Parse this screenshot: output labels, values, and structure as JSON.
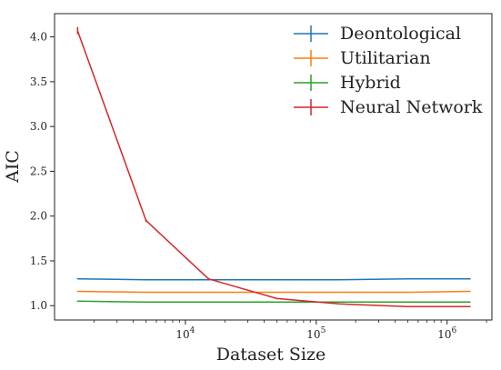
{
  "chart_data": {
    "type": "line",
    "title": "",
    "xlabel": "Dataset Size",
    "ylabel": "AIC",
    "x_scale": "log",
    "xlim": [
      1000,
      2200000
    ],
    "ylim": [
      0.84,
      4.26
    ],
    "x": [
      1500,
      5000,
      15000,
      50000,
      150000,
      500000,
      1500000
    ],
    "x_ticks": [
      {
        "value": 10000,
        "base": "10",
        "exp": "4"
      },
      {
        "value": 100000,
        "base": "10",
        "exp": "5"
      },
      {
        "value": 1000000,
        "base": "10",
        "exp": "6"
      }
    ],
    "y_ticks": [
      1.0,
      1.5,
      2.0,
      2.5,
      3.0,
      3.5,
      4.0
    ],
    "y_tick_labels": [
      "1.0",
      "1.5",
      "2.0",
      "2.5",
      "3.0",
      "3.5",
      "4.0"
    ],
    "grid": false,
    "legend_position": "top-right",
    "series": [
      {
        "name": "Deontological",
        "color": "#1f77b4",
        "values": [
          1.3,
          1.29,
          1.29,
          1.29,
          1.29,
          1.3,
          1.3
        ],
        "error": [
          0.005,
          0.005,
          0.005,
          0.005,
          0.005,
          0.005,
          0.005
        ]
      },
      {
        "name": "Utilitarian",
        "color": "#ff7f0e",
        "values": [
          1.16,
          1.15,
          1.15,
          1.15,
          1.15,
          1.15,
          1.16
        ],
        "error": [
          0.005,
          0.005,
          0.005,
          0.005,
          0.005,
          0.005,
          0.005
        ]
      },
      {
        "name": "Hybrid",
        "color": "#2ca02c",
        "values": [
          1.05,
          1.04,
          1.04,
          1.04,
          1.04,
          1.04,
          1.04
        ],
        "error": [
          0.005,
          0.005,
          0.005,
          0.005,
          0.005,
          0.005,
          0.005
        ]
      },
      {
        "name": "Neural Network",
        "color": "#d62728",
        "values": [
          4.07,
          1.95,
          1.3,
          1.08,
          1.02,
          0.99,
          0.99
        ],
        "error": [
          0.04,
          0.015,
          0.01,
          0.008,
          0.005,
          0.005,
          0.005
        ]
      }
    ]
  }
}
